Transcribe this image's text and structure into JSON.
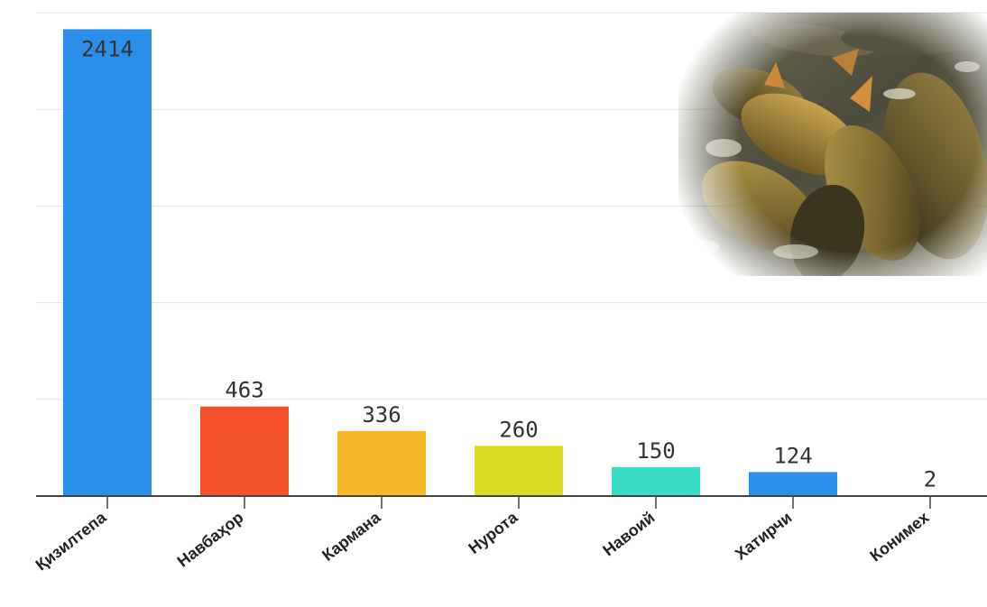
{
  "chart_data": {
    "type": "bar",
    "categories": [
      "Қизилтепа",
      "Навбаҳор",
      "Кармана",
      "Нурота",
      "Навоий",
      "Хатирчи",
      "Конимех"
    ],
    "values": [
      2414,
      463,
      336,
      260,
      150,
      124,
      2
    ],
    "colors": [
      "#2b8ee8",
      "#f4502a",
      "#f6b829",
      "#d7de23",
      "#3bdcc6",
      "#2b8ee8",
      "#2b8ee8"
    ],
    "ylim": [
      0,
      2500
    ],
    "grid": true,
    "title": "",
    "xlabel": "",
    "ylabel": ""
  },
  "image": {
    "subject": "carp fish crowded in water",
    "icon": "fish-photo"
  }
}
